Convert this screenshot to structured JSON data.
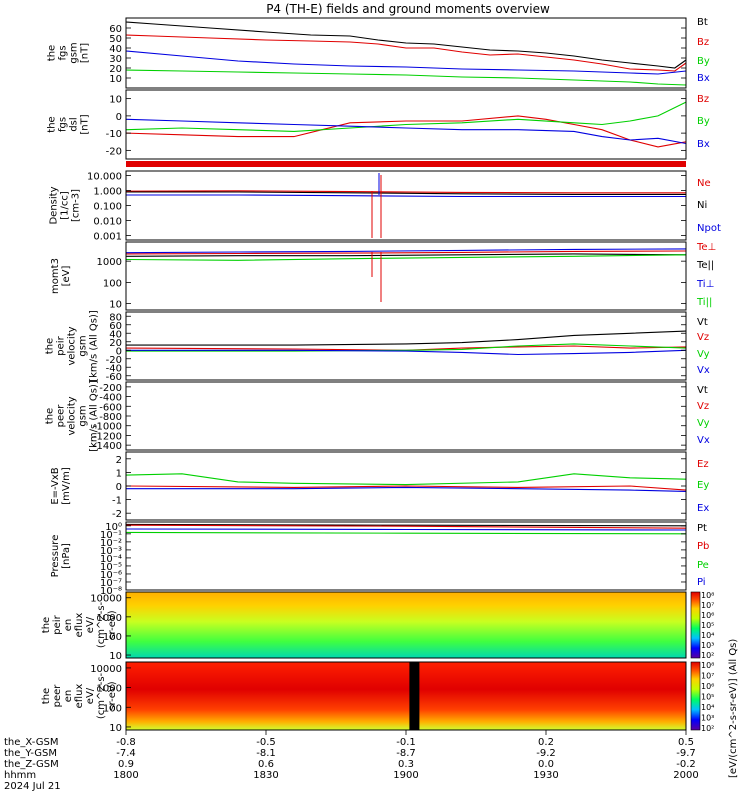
{
  "title": "P4 (TH-E) fields and ground moments overview",
  "colors": {
    "black": "#000000",
    "red": "#e00000",
    "green": "#00d000",
    "blue": "#0000e0",
    "light_green": "#66ee22"
  },
  "chart_data": [
    {
      "type": "line",
      "id": "fgs-gsm",
      "ylabel": [
        "the",
        "fgs",
        "gsm",
        "[nT]"
      ],
      "ylim": [
        0,
        70
      ],
      "yticks": [
        "60",
        "50",
        "40",
        "30",
        "20",
        "10"
      ],
      "ytick_values": [
        60,
        50,
        40,
        30,
        20,
        10
      ],
      "x_time": [
        "1800",
        "1830",
        "1900",
        "1930",
        "2000"
      ],
      "series": [
        {
          "name": "Bt",
          "color": "#000000",
          "x": [
            0,
            0.05,
            0.15,
            0.25,
            0.33,
            0.4,
            0.45,
            0.5,
            0.55,
            0.6,
            0.65,
            0.7,
            0.75,
            0.8,
            0.85,
            0.9,
            0.95,
            0.98,
            1.0
          ],
          "values": [
            66,
            64,
            60,
            56,
            53,
            52,
            48,
            45,
            44,
            41,
            38,
            37,
            35,
            32,
            28,
            25,
            22,
            20,
            28
          ]
        },
        {
          "name": "Bz",
          "color": "#e00000",
          "x": [
            0,
            0.05,
            0.15,
            0.25,
            0.33,
            0.4,
            0.45,
            0.5,
            0.55,
            0.6,
            0.65,
            0.7,
            0.75,
            0.8,
            0.85,
            0.9,
            0.95,
            0.98,
            1.0
          ],
          "values": [
            53,
            52,
            50,
            48,
            47,
            46,
            44,
            40,
            40,
            36,
            33,
            34,
            31,
            28,
            24,
            19,
            18,
            17,
            25
          ]
        },
        {
          "name": "By",
          "color": "#00d000",
          "x": [
            0,
            0.1,
            0.2,
            0.3,
            0.4,
            0.5,
            0.6,
            0.7,
            0.8,
            0.85,
            0.9,
            0.95,
            1.0
          ],
          "values": [
            18,
            17,
            16,
            15,
            14,
            13,
            11,
            10,
            8,
            7,
            6,
            4,
            3
          ]
        },
        {
          "name": "Bx",
          "color": "#0000e0",
          "x": [
            0,
            0.1,
            0.2,
            0.3,
            0.4,
            0.5,
            0.6,
            0.7,
            0.8,
            0.85,
            0.9,
            0.95,
            1.0
          ],
          "values": [
            37,
            32,
            27,
            24,
            22,
            21,
            19,
            18,
            17,
            16,
            15,
            14,
            17
          ]
        }
      ]
    },
    {
      "type": "line",
      "id": "fgs-dsl",
      "ylabel": [
        "the",
        "fgs",
        "dsl",
        "[nT]"
      ],
      "ylim": [
        -25,
        15
      ],
      "yticks": [
        "10",
        "0",
        "-10",
        "-20"
      ],
      "ytick_values": [
        10,
        0,
        -10,
        -20
      ],
      "series": [
        {
          "name": "Bz",
          "color": "#e00000",
          "x": [
            0,
            0.1,
            0.2,
            0.3,
            0.35,
            0.4,
            0.5,
            0.6,
            0.7,
            0.75,
            0.8,
            0.85,
            0.9,
            0.95,
            1.0
          ],
          "values": [
            -10,
            -11,
            -12,
            -12,
            -8,
            -4,
            -3,
            -3,
            0,
            -2,
            -5,
            -8,
            -14,
            -18,
            -15
          ]
        },
        {
          "name": "By",
          "color": "#00d000",
          "x": [
            0,
            0.1,
            0.2,
            0.3,
            0.4,
            0.5,
            0.6,
            0.7,
            0.8,
            0.85,
            0.9,
            0.95,
            1.0
          ],
          "values": [
            -8,
            -7,
            -8,
            -9,
            -7,
            -5,
            -4,
            -2,
            -4,
            -5,
            -3,
            0,
            8
          ]
        },
        {
          "name": "Bx",
          "color": "#0000e0",
          "x": [
            0,
            0.1,
            0.2,
            0.3,
            0.4,
            0.5,
            0.6,
            0.7,
            0.8,
            0.85,
            0.9,
            0.95,
            1.0
          ],
          "values": [
            -2,
            -3,
            -4,
            -5,
            -6,
            -7,
            -8,
            -8,
            -9,
            -12,
            -14,
            -13,
            -16
          ]
        }
      ]
    },
    {
      "type": "line",
      "id": "density",
      "ylabel": [
        "Density",
        "[1/cc]",
        "[cm-3]"
      ],
      "scale": "log",
      "ylim": [
        0.0005,
        20
      ],
      "yticks": [
        "10.000",
        "1.000",
        "0.100",
        "0.010",
        "0.001"
      ],
      "ytick_values": [
        10,
        1,
        0.1,
        0.01,
        0.001
      ],
      "series": [
        {
          "name": "Ne",
          "color": "#e00000",
          "x": [
            0,
            0.2,
            0.4,
            0.6,
            0.8,
            1.0
          ],
          "values": [
            0.9,
            0.95,
            0.85,
            0.75,
            0.7,
            0.7
          ]
        },
        {
          "name": "Ni",
          "color": "#000000",
          "x": [
            0,
            0.2,
            0.4,
            0.6,
            0.8,
            1.0
          ],
          "values": [
            0.8,
            0.8,
            0.7,
            0.6,
            0.55,
            0.55
          ]
        },
        {
          "name": "Npot",
          "color": "#0000e0",
          "x": [
            0,
            0.2,
            0.4,
            0.6,
            0.8,
            1.0
          ],
          "values": [
            0.5,
            0.5,
            0.45,
            0.4,
            0.4,
            0.4
          ]
        }
      ]
    },
    {
      "type": "line",
      "id": "mom",
      "ylabel": [
        "momt3",
        "[eV]"
      ],
      "scale": "log",
      "ylim": [
        5,
        8000
      ],
      "yticks": [
        "1000",
        "100",
        "10"
      ],
      "ytick_values": [
        1000,
        100,
        10
      ],
      "series": [
        {
          "name": "Te⊥",
          "color": "#e00000",
          "x": [
            0,
            0.2,
            0.4,
            0.6,
            0.8,
            1.0
          ],
          "values": [
            2200,
            2300,
            2400,
            2600,
            2900,
            3000
          ]
        },
        {
          "name": "Te||",
          "color": "#000000",
          "x": [
            0,
            0.2,
            0.4,
            0.6,
            0.8,
            1.0
          ],
          "values": [
            1700,
            1800,
            1800,
            2000,
            2200,
            2000
          ]
        },
        {
          "name": "Ti⊥",
          "color": "#0000e0",
          "x": [
            0,
            0.2,
            0.4,
            0.6,
            0.8,
            1.0
          ],
          "values": [
            2500,
            2700,
            2900,
            3200,
            3600,
            3800
          ]
        },
        {
          "name": "Ti||",
          "color": "#00d000",
          "x": [
            0,
            0.2,
            0.4,
            0.6,
            0.8,
            1.0
          ],
          "values": [
            1200,
            1100,
            1300,
            1500,
            1700,
            2000
          ]
        }
      ]
    },
    {
      "type": "line",
      "id": "peir-velocity",
      "ylabel": [
        "the",
        "peir",
        "velocity",
        "gsm",
        "[km/s (All Qs)]"
      ],
      "ylim": [
        -70,
        90
      ],
      "yticks": [
        "80",
        "60",
        "40",
        "20",
        "0",
        "-20",
        "-40",
        "-60"
      ],
      "ytick_values": [
        80,
        60,
        40,
        20,
        0,
        -20,
        -40,
        -60
      ],
      "series": [
        {
          "name": "Vt",
          "color": "#000000",
          "x": [
            0,
            0.3,
            0.5,
            0.6,
            0.7,
            0.8,
            0.9,
            1.0
          ],
          "values": [
            12,
            12,
            15,
            18,
            25,
            35,
            40,
            45
          ]
        },
        {
          "name": "Vz",
          "color": "#e00000",
          "x": [
            0,
            0.3,
            0.5,
            0.6,
            0.7,
            0.8,
            0.9,
            1.0
          ],
          "values": [
            5,
            3,
            0,
            5,
            8,
            10,
            5,
            8
          ]
        },
        {
          "name": "Vy",
          "color": "#00d000",
          "x": [
            0,
            0.3,
            0.5,
            0.6,
            0.7,
            0.8,
            0.9,
            1.0
          ],
          "values": [
            -2,
            -2,
            0,
            2,
            10,
            15,
            10,
            5
          ]
        },
        {
          "name": "Vx",
          "color": "#0000e0",
          "x": [
            0,
            0.3,
            0.5,
            0.6,
            0.7,
            0.8,
            0.9,
            1.0
          ],
          "values": [
            0,
            0,
            -2,
            -5,
            -10,
            -8,
            -5,
            0
          ]
        }
      ]
    },
    {
      "type": "line",
      "id": "peer-velocity",
      "ylabel": [
        "the",
        "peer",
        "velocity",
        "gsm",
        "[km/s (All Qs)]"
      ],
      "ylim": [
        -1500,
        -100
      ],
      "yticks": [
        "-200",
        "-400",
        "-600",
        "-800",
        "-1000",
        "-1200",
        "-1400"
      ],
      "ytick_values": [
        -200,
        -400,
        -600,
        -800,
        -1000,
        -1200,
        -1400
      ],
      "series": [
        {
          "name": "Vt",
          "color": "#000000",
          "x": [],
          "values": []
        },
        {
          "name": "Vz",
          "color": "#e00000",
          "x": [],
          "values": []
        },
        {
          "name": "Vy",
          "color": "#00d000",
          "x": [],
          "values": []
        },
        {
          "name": "Vx",
          "color": "#0000e0",
          "x": [],
          "values": []
        }
      ]
    },
    {
      "type": "line",
      "id": "efield",
      "ylabel": [
        "E=-VxB",
        "[mV/m]"
      ],
      "ylim": [
        -2.5,
        2.5
      ],
      "yticks": [
        "2",
        "1",
        "0",
        "-1",
        "-2"
      ],
      "ytick_values": [
        2,
        1,
        0,
        -1,
        -2
      ],
      "series": [
        {
          "name": "Ez",
          "color": "#e00000",
          "x": [
            0,
            0.3,
            0.5,
            0.7,
            0.9,
            1.0
          ],
          "values": [
            0,
            -0.1,
            0,
            -0.1,
            0,
            -0.3
          ]
        },
        {
          "name": "Ey",
          "color": "#00d000",
          "x": [
            0,
            0.1,
            0.2,
            0.3,
            0.5,
            0.7,
            0.8,
            0.9,
            1.0
          ],
          "values": [
            0.8,
            0.9,
            0.3,
            0.2,
            0.1,
            0.3,
            0.9,
            0.6,
            0.5
          ]
        },
        {
          "name": "Ex",
          "color": "#0000e0",
          "x": [
            0,
            0.3,
            0.5,
            0.7,
            0.9,
            1.0
          ],
          "values": [
            -0.2,
            -0.2,
            -0.1,
            -0.2,
            -0.3,
            -0.4
          ]
        }
      ]
    },
    {
      "type": "line",
      "id": "pressure",
      "ylabel": [
        "Pressure",
        "[nPa]"
      ],
      "scale": "log",
      "ylim": [
        1e-08,
        3
      ],
      "yticks": [
        "10⁰",
        "10⁻¹",
        "10⁻²",
        "10⁻³",
        "10⁻⁴",
        "10⁻⁵",
        "10⁻⁶",
        "10⁻⁷",
        "10⁻⁸"
      ],
      "ytick_values": [
        1,
        0.1,
        0.01,
        0.001,
        0.0001,
        1e-05,
        1e-06,
        1e-07,
        1e-08
      ],
      "series": [
        {
          "name": "Pt",
          "color": "#000000",
          "x": [
            0,
            0.5,
            1.0
          ],
          "values": [
            1.5,
            1.2,
            1.0
          ]
        },
        {
          "name": "Pb",
          "color": "#e00000",
          "x": [
            0,
            0.5,
            1.0
          ],
          "values": [
            1.2,
            0.9,
            0.5
          ]
        },
        {
          "name": "Pe",
          "color": "#00d000",
          "x": [
            0,
            0.5,
            1.0
          ],
          "values": [
            0.15,
            0.12,
            0.1
          ]
        },
        {
          "name": "Pi",
          "color": "#0000e0",
          "x": [
            0,
            0.5,
            1.0
          ],
          "values": [
            0.4,
            0.35,
            0.3
          ]
        }
      ]
    },
    {
      "type": "heatmap",
      "id": "peir-en-eflux",
      "ylabel": [
        "the",
        "peir",
        "en",
        "eflux",
        "eV/",
        "(cm^2-s-",
        "sr-eV)"
      ],
      "yticks": [
        "10000",
        "1000",
        "100",
        "10"
      ],
      "ytick_values": [
        10000,
        1000,
        100,
        10
      ]
    },
    {
      "type": "heatmap",
      "id": "peer-en-eflux",
      "ylabel": [
        "the",
        "peer",
        "en",
        "eflux",
        "eV/",
        "(cm^2-s-",
        "sr-eV)"
      ],
      "yticks": [
        "10000",
        "1000",
        "100",
        "10"
      ],
      "ytick_values": [
        10000,
        1000,
        100,
        10
      ],
      "gap_x": 0.515
    }
  ],
  "colorbar": {
    "label": "[eV/(cm^2-s-sr-eV)] (All Qs)",
    "ticks_top": [
      "10⁸",
      "10⁷",
      "10⁶",
      "10⁵",
      "10⁴",
      "10³",
      "10²"
    ],
    "ticks_bottom": [
      "10⁸",
      "10⁷",
      "10⁶",
      "10⁵",
      "10⁴",
      "10³",
      "10²"
    ]
  },
  "xaxis": {
    "row_labels": [
      "the_X-GSM",
      "the_Y-GSM",
      "the_Z-GSM",
      "hhmm",
      "2024 Jul 21"
    ],
    "columns": [
      [
        "-0.8",
        "-7.4",
        "0.9",
        "1800"
      ],
      [
        "-0.5",
        "-8.1",
        "0.6",
        "1830"
      ],
      [
        "-0.1",
        "-8.7",
        "0.3",
        "1900"
      ],
      [
        "0.2",
        "-9.2",
        "0.0",
        "1930"
      ],
      [
        "0.5",
        "-9.7",
        "-0.2",
        "2000"
      ]
    ]
  }
}
